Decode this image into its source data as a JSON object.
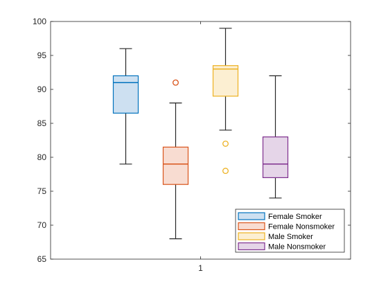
{
  "chart_data": {
    "type": "box",
    "categories": [
      "1"
    ],
    "ylim": [
      65,
      100
    ],
    "yticks": [
      65,
      70,
      75,
      80,
      85,
      90,
      95,
      100
    ],
    "title": "",
    "xlabel": "",
    "ylabel": "",
    "legend_position": "bottom-right",
    "series": [
      {
        "name": "Female Smoker",
        "color": "#0072BD",
        "fill": "#cde0f1",
        "whisker_low": 79,
        "q1": 86.5,
        "median": 91,
        "q3": 92,
        "whisker_high": 96,
        "outliers": []
      },
      {
        "name": "Female Nonsmoker",
        "color": "#D95319",
        "fill": "#f8dcd1",
        "whisker_low": 68,
        "q1": 76,
        "median": 79,
        "q3": 81.5,
        "whisker_high": 88,
        "outliers": [
          91
        ]
      },
      {
        "name": "Male Smoker",
        "color": "#EDB120",
        "fill": "#fcefd2",
        "whisker_low": 84,
        "q1": 89,
        "median": 93,
        "q3": 93.5,
        "whisker_high": 99,
        "outliers": [
          82,
          78
        ]
      },
      {
        "name": "Male Nonsmoker",
        "color": "#7E2F8E",
        "fill": "#e5d5e8",
        "whisker_low": 74,
        "q1": 77,
        "median": 79,
        "q3": 83,
        "whisker_high": 92,
        "outliers": []
      }
    ]
  }
}
